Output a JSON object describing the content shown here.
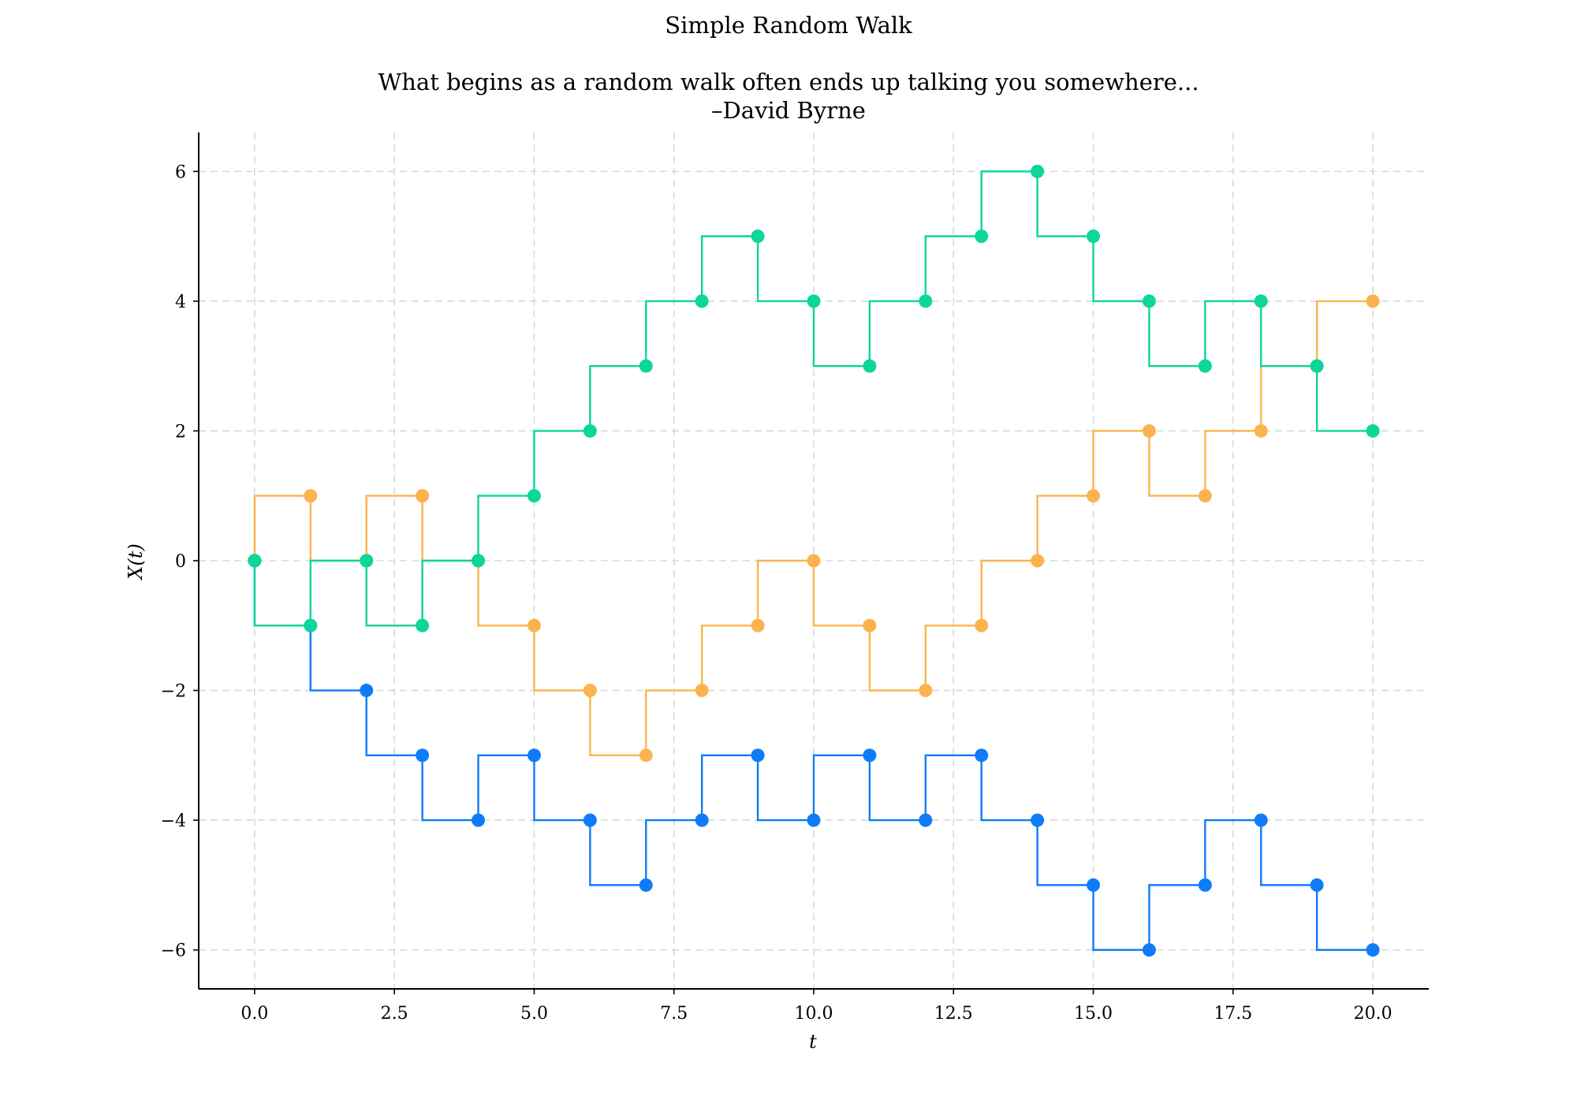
{
  "chart_data": {
    "type": "line",
    "step": "pre",
    "title": "Simple Random Walk",
    "subtitle_lines": [
      "What begins as a random walk often ends up talking you somewhere...",
      "–David Byrne"
    ],
    "xlabel": "t",
    "ylabel": "X(t)",
    "xlim": [
      -1,
      21
    ],
    "ylim": [
      -6.6,
      6.6
    ],
    "xticks": [
      0,
      2.5,
      5,
      7.5,
      10,
      12.5,
      15,
      17.5,
      20
    ],
    "xtick_labels": [
      "0.0",
      "2.5",
      "5.0",
      "7.5",
      "10.0",
      "12.5",
      "15.0",
      "17.5",
      "20.0"
    ],
    "yticks": [
      -6,
      -4,
      -2,
      0,
      2,
      4,
      6
    ],
    "ytick_labels": [
      "−6",
      "−4",
      "−2",
      "0",
      "2",
      "4",
      "6"
    ],
    "grid": true,
    "x": [
      0,
      1,
      2,
      3,
      4,
      5,
      6,
      7,
      8,
      9,
      10,
      11,
      12,
      13,
      14,
      15,
      16,
      17,
      18,
      19,
      20
    ],
    "series": [
      {
        "color": "#fbb44d",
        "values": [
          0,
          1,
          0,
          1,
          0,
          -1,
          -2,
          -3,
          -2,
          -1,
          0,
          -1,
          -2,
          -1,
          0,
          1,
          2,
          1,
          2,
          3,
          4
        ]
      },
      {
        "color": "#0f7cf7",
        "values": [
          0,
          -1,
          -2,
          -3,
          -4,
          -3,
          -4,
          -5,
          -4,
          -3,
          -4,
          -3,
          -4,
          -3,
          -4,
          -5,
          -6,
          -5,
          -4,
          -5,
          -6
        ]
      },
      {
        "color": "#0cd69a",
        "values": [
          0,
          -1,
          0,
          -1,
          0,
          1,
          2,
          3,
          4,
          5,
          4,
          3,
          4,
          5,
          6,
          5,
          4,
          3,
          4,
          3,
          2
        ]
      }
    ]
  }
}
